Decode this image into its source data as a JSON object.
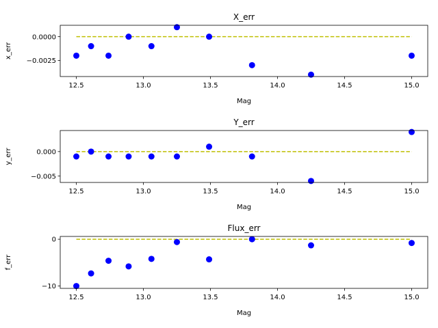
{
  "chart_data": [
    {
      "type": "scatter",
      "title": "X_err",
      "xlabel": "Mag",
      "ylabel": "x_err",
      "xlim": [
        12.38,
        15.12
      ],
      "ylim": [
        -0.0042,
        0.0012
      ],
      "xticks": [
        12.5,
        13.0,
        13.5,
        14.0,
        14.5,
        15.0
      ],
      "xtick_labels": [
        "12.5",
        "13.0",
        "13.5",
        "14.0",
        "14.5",
        "15.0"
      ],
      "yticks": [
        0.0,
        -0.0025
      ],
      "ytick_labels": [
        "0.0000",
        "−0.0025"
      ],
      "grid": false,
      "points": {
        "x": [
          12.5,
          12.61,
          12.74,
          12.89,
          13.06,
          13.25,
          13.49,
          13.81,
          14.25,
          15.0
        ],
        "y": [
          -0.002,
          -0.001,
          -0.002,
          0.0,
          -0.001,
          0.001,
          0.0,
          -0.003,
          -0.004,
          -0.002
        ]
      },
      "reference_line": {
        "x": [
          12.5,
          15.0
        ],
        "y": [
          0.0,
          0.0
        ]
      }
    },
    {
      "type": "scatter",
      "title": "Y_err",
      "xlabel": "Mag",
      "ylabel": "y_err",
      "xlim": [
        12.38,
        15.12
      ],
      "ylim": [
        -0.0063,
        0.0043
      ],
      "xticks": [
        12.5,
        13.0,
        13.5,
        14.0,
        14.5,
        15.0
      ],
      "xtick_labels": [
        "12.5",
        "13.0",
        "13.5",
        "14.0",
        "14.5",
        "15.0"
      ],
      "yticks": [
        0.0,
        -0.005
      ],
      "ytick_labels": [
        "0.000",
        "−0.005"
      ],
      "grid": false,
      "points": {
        "x": [
          12.5,
          12.61,
          12.74,
          12.89,
          13.06,
          13.25,
          13.49,
          13.81,
          14.25,
          15.0
        ],
        "y": [
          -0.001,
          0.0,
          -0.001,
          -0.001,
          -0.001,
          -0.001,
          0.001,
          -0.001,
          -0.006,
          0.004
        ]
      },
      "reference_line": {
        "x": [
          12.5,
          15.0
        ],
        "y": [
          0.0,
          0.0
        ]
      }
    },
    {
      "type": "scatter",
      "title": "Flux_err",
      "xlabel": "Mag",
      "ylabel": "f_err",
      "xlim": [
        12.38,
        15.12
      ],
      "ylim": [
        -10.5,
        0.6
      ],
      "xticks": [
        12.5,
        13.0,
        13.5,
        14.0,
        14.5,
        15.0
      ],
      "xtick_labels": [
        "12.5",
        "13.0",
        "13.5",
        "14.0",
        "14.5",
        "15.0"
      ],
      "yticks": [
        0,
        -10
      ],
      "ytick_labels": [
        "0",
        "−10"
      ],
      "grid": false,
      "points": {
        "x": [
          12.5,
          12.61,
          12.74,
          12.89,
          13.06,
          13.25,
          13.49,
          13.81,
          14.25,
          15.0
        ],
        "y": [
          -10.0,
          -7.3,
          -4.6,
          -5.8,
          -4.2,
          -0.6,
          -4.3,
          0.0,
          -1.3,
          -0.8
        ]
      },
      "reference_line": {
        "x": [
          12.5,
          15.0
        ],
        "y": [
          0.0,
          0.0
        ]
      }
    }
  ],
  "colors": {
    "points": "#0000ff",
    "reference_line": "#bfbf00",
    "axes": "#000000",
    "background": "#ffffff"
  }
}
